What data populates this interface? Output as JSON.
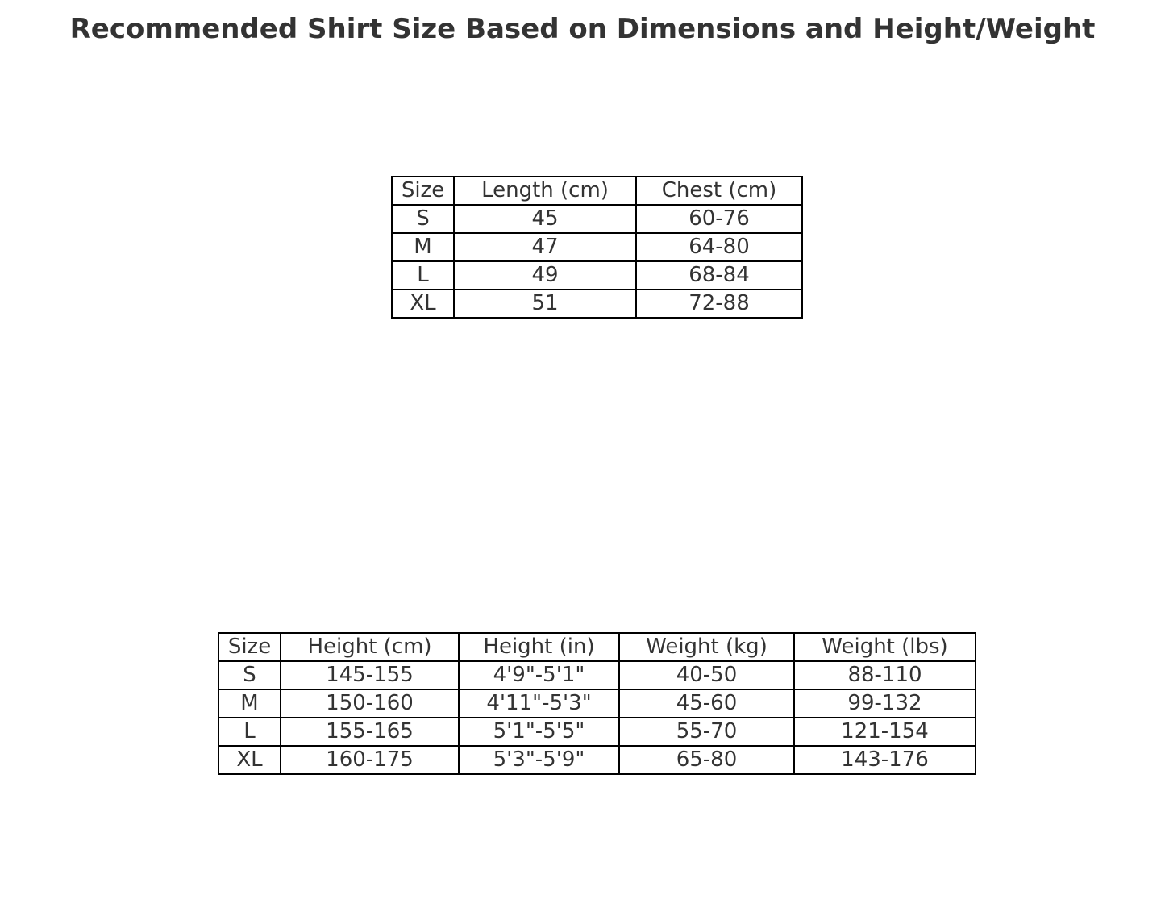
{
  "chart_data": [
    {
      "type": "table",
      "title": "Recommended Shirt Size Based on Dimensions and Height/Weight",
      "columns": [
        "Size",
        "Length (cm)",
        "Chest (cm)"
      ],
      "rows": [
        [
          "S",
          "45",
          "60-76"
        ],
        [
          "M",
          "47",
          "64-80"
        ],
        [
          "L",
          "49",
          "68-84"
        ],
        [
          "XL",
          "51",
          "72-88"
        ]
      ]
    },
    {
      "type": "table",
      "columns": [
        "Size",
        "Height (cm)",
        "Height (in)",
        "Weight (kg)",
        "Weight (lbs)"
      ],
      "rows": [
        [
          "S",
          "145-155",
          "4'9\"-5'1\"",
          "40-50",
          "88-110"
        ],
        [
          "M",
          "150-160",
          "4'11\"-5'3\"",
          "45-60",
          "99-132"
        ],
        [
          "L",
          "155-165",
          "5'1\"-5'5\"",
          "55-70",
          "121-154"
        ],
        [
          "XL",
          "160-175",
          "5'3\"-5'9\"",
          "65-80",
          "143-176"
        ]
      ]
    }
  ]
}
